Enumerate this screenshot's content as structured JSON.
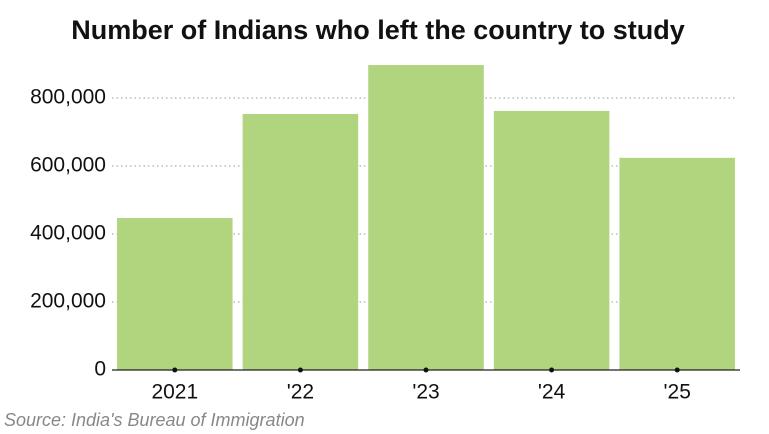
{
  "chart_data": {
    "type": "bar",
    "title": "Number of Indians who left the country to study",
    "categories": [
      "2021",
      "'22",
      "'23",
      "'24",
      "'25"
    ],
    "values": [
      447000,
      753000,
      897000,
      762000,
      624000
    ],
    "color": "#b1d57f",
    "ylim": [
      0,
      900000
    ],
    "yticks": [
      0,
      {
        "value": 200000,
        "label": "200,000"
      },
      {
        "value": 400000,
        "label": "400,000"
      },
      {
        "value": 600000,
        "label": "600,000"
      },
      {
        "value": 800000,
        "label": "800,000"
      }
    ],
    "grid": true,
    "source": "Source: India's Bureau of Immigration"
  }
}
